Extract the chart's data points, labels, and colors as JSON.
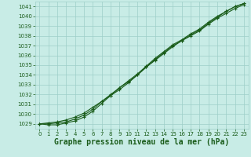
{
  "xlabel_label": "Graphe pression niveau de la mer (hPa)",
  "ylim": [
    1028.5,
    1041.5
  ],
  "xlim": [
    -0.5,
    23.5
  ],
  "yticks": [
    1029,
    1030,
    1031,
    1032,
    1033,
    1034,
    1035,
    1036,
    1037,
    1038,
    1039,
    1040,
    1041
  ],
  "xticks": [
    0,
    1,
    2,
    3,
    4,
    5,
    6,
    7,
    8,
    9,
    10,
    11,
    12,
    13,
    14,
    15,
    16,
    17,
    18,
    19,
    20,
    21,
    22,
    23
  ],
  "bg_color": "#c8ece6",
  "grid_color": "#9ecfc8",
  "line_color": "#1a5c1a",
  "line1_y": [
    1029.0,
    1029.1,
    1029.2,
    1029.4,
    1029.7,
    1030.1,
    1030.7,
    1031.3,
    1031.9,
    1032.5,
    1033.2,
    1034.0,
    1034.8,
    1035.5,
    1036.2,
    1036.9,
    1037.5,
    1038.0,
    1038.5,
    1039.2,
    1039.8,
    1040.3,
    1040.8,
    1041.2
  ],
  "line2_y": [
    1029.0,
    1029.0,
    1029.1,
    1029.2,
    1029.5,
    1029.9,
    1030.5,
    1031.3,
    1032.0,
    1032.7,
    1033.3,
    1034.0,
    1034.8,
    1035.6,
    1036.3,
    1037.0,
    1037.5,
    1038.1,
    1038.6,
    1039.3,
    1039.9,
    1040.5,
    1041.0,
    1041.3
  ],
  "line3_y": [
    1029.0,
    1028.9,
    1028.9,
    1029.1,
    1029.3,
    1029.7,
    1030.3,
    1031.1,
    1031.9,
    1032.7,
    1033.4,
    1034.1,
    1034.9,
    1035.7,
    1036.4,
    1037.1,
    1037.6,
    1038.2,
    1038.7,
    1039.4,
    1040.0,
    1040.5,
    1041.0,
    1041.3
  ],
  "marker": "+",
  "markersize": 3.5,
  "linewidth": 0.8,
  "tick_fontsize": 5.0,
  "xlabel_fontsize": 7.0
}
